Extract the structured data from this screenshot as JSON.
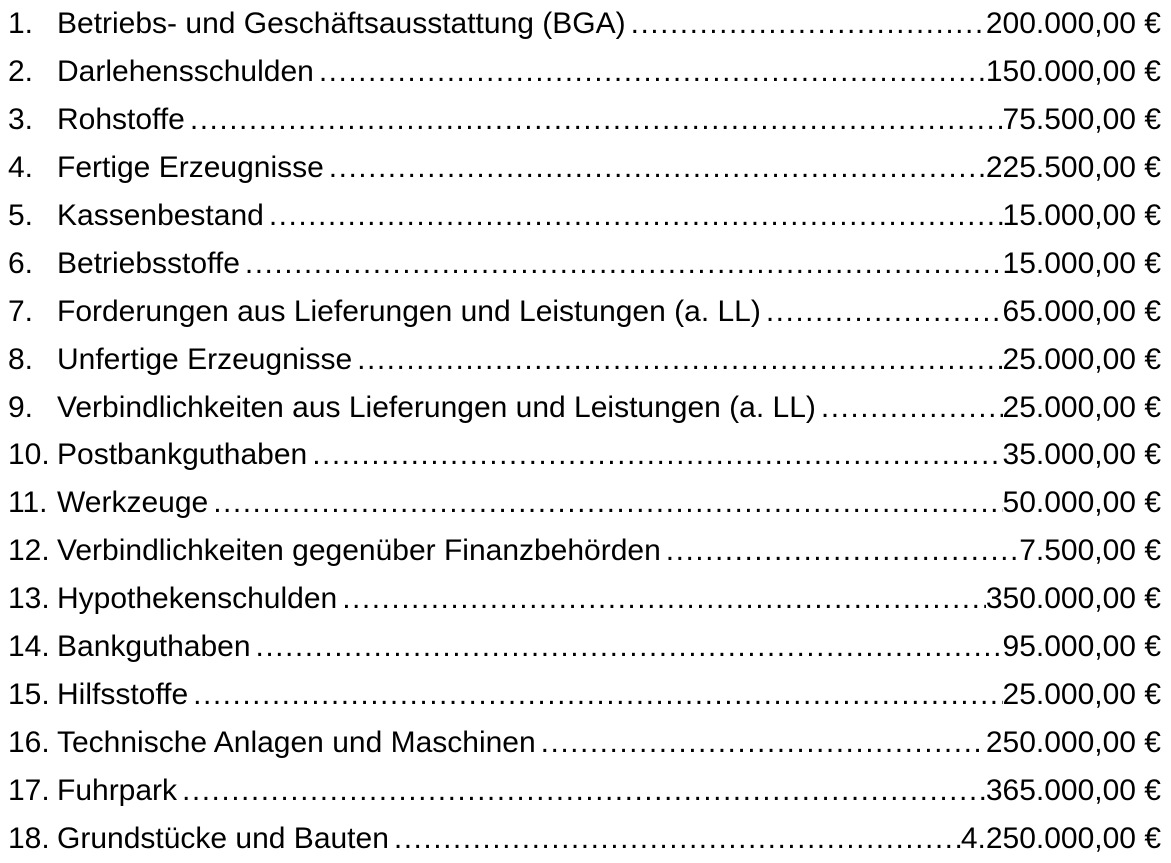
{
  "page": {
    "background_color": "#ffffff",
    "text_color": "#000000",
    "currency_symbol": "€"
  },
  "list": {
    "items": [
      {
        "number": "1.",
        "label": "Betriebs- und Geschäftsausstattung (BGA)",
        "amount": "200.000,00 €"
      },
      {
        "number": "2.",
        "label": "Darlehensschulden",
        "amount": "150.000,00 €"
      },
      {
        "number": "3.",
        "label": "Rohstoffe",
        "amount": "75.500,00 €"
      },
      {
        "number": "4.",
        "label": "Fertige Erzeugnisse",
        "amount": "225.500,00 €"
      },
      {
        "number": "5.",
        "label": "Kassenbestand",
        "amount": "15.000,00 €"
      },
      {
        "number": "6.",
        "label": "Betriebsstoffe",
        "amount": "15.000,00 €"
      },
      {
        "number": "7.",
        "label": "Forderungen aus Lieferungen und Leistungen (a. LL)",
        "amount": "65.000,00 €"
      },
      {
        "number": "8.",
        "label": "Unfertige Erzeugnisse",
        "amount": "25.000,00 €"
      },
      {
        "number": "9.",
        "label": "Verbindlichkeiten aus Lieferungen und Leistungen (a. LL)",
        "amount": "25.000,00 €"
      },
      {
        "number": "10.",
        "label": "Postbankguthaben",
        "amount": "35.000,00 €"
      },
      {
        "number": "11.",
        "label": "Werkzeuge",
        "amount": "50.000,00 €"
      },
      {
        "number": "12.",
        "label": "Verbindlichkeiten gegenüber Finanzbehörden",
        "amount": "7.500,00 €"
      },
      {
        "number": "13.",
        "label": "Hypothekenschulden",
        "amount": "350.000,00 €"
      },
      {
        "number": "14.",
        "label": "Bankguthaben",
        "amount": "95.000,00 €"
      },
      {
        "number": "15.",
        "label": "Hilfsstoffe",
        "amount": "25.000,00 €"
      },
      {
        "number": "16.",
        "label": "Technische Anlagen und Maschinen",
        "amount": "250.000,00 €"
      },
      {
        "number": "17.",
        "label": "Fuhrpark",
        "amount": "365.000,00 €"
      },
      {
        "number": "18.",
        "label": "Grundstücke und Bauten",
        "amount": "4.250.000,00 €"
      }
    ]
  }
}
